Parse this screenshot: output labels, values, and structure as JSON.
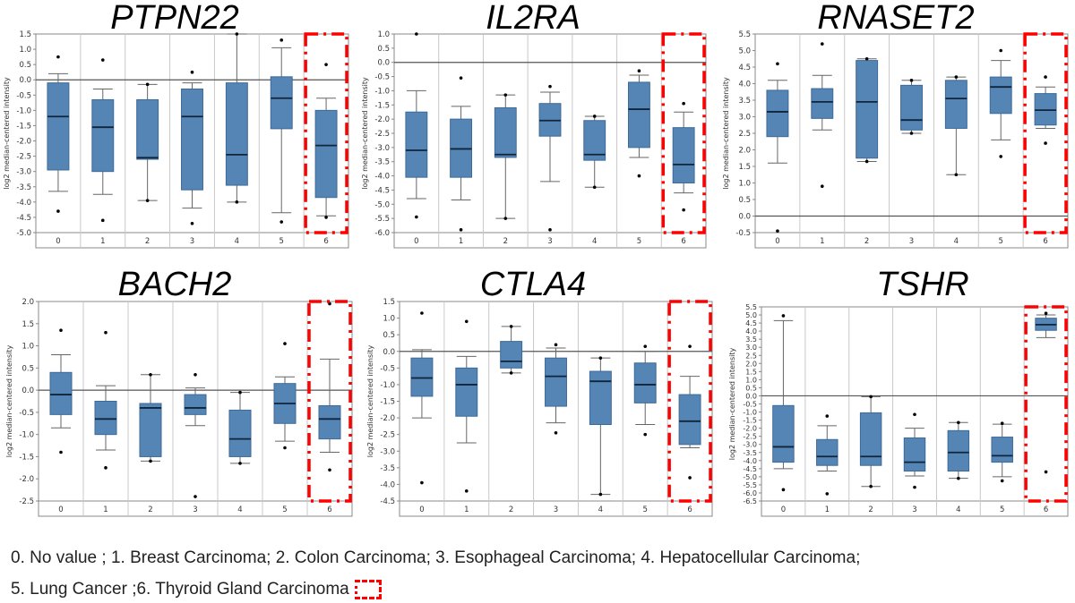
{
  "chart_data": [
    {
      "type": "box",
      "title": "PTPN22",
      "ylabel": "log2 median-centered intensity",
      "ylim": [
        -5.0,
        1.5
      ],
      "ystep": 0.5,
      "categories": [
        "0",
        "1",
        "2",
        "3",
        "4",
        "5",
        "6"
      ],
      "highlight": "6",
      "grid": true,
      "boxes": [
        {
          "whisker_low": -3.65,
          "q1": -2.95,
          "median": -1.2,
          "q3": -0.1,
          "whisker_high": 0.2,
          "outliers": [
            0.75,
            -4.3
          ]
        },
        {
          "whisker_low": -3.75,
          "q1": -3.0,
          "median": -1.55,
          "q3": -0.65,
          "whisker_high": -0.3,
          "outliers": [
            0.65,
            -4.6
          ]
        },
        {
          "whisker_low": -3.95,
          "q1": -2.6,
          "median": -2.55,
          "q3": -0.65,
          "whisker_high": -0.15,
          "outliers": [
            -0.15,
            -3.95
          ]
        },
        {
          "whisker_low": -4.2,
          "q1": -3.6,
          "median": -1.2,
          "q3": -0.3,
          "whisker_high": -0.1,
          "outliers": [
            0.25,
            -4.7
          ]
        },
        {
          "whisker_low": -4.0,
          "q1": -3.45,
          "median": -2.45,
          "q3": -0.1,
          "whisker_high": 1.5,
          "outliers": [
            1.5,
            -4.0
          ]
        },
        {
          "whisker_low": -4.35,
          "q1": -1.6,
          "median": -0.6,
          "q3": 0.1,
          "whisker_high": 1.05,
          "outliers": [
            1.3,
            -4.65
          ]
        },
        {
          "whisker_low": -4.45,
          "q1": -3.85,
          "median": -2.15,
          "q3": -1.0,
          "whisker_high": -0.6,
          "outliers": [
            0.5,
            -4.5
          ]
        }
      ]
    },
    {
      "type": "box",
      "title": "IL2RA",
      "ylabel": "log2 median-centered intensity",
      "ylim": [
        -6.0,
        1.0
      ],
      "ystep": 0.5,
      "categories": [
        "0",
        "1",
        "2",
        "3",
        "4",
        "5",
        "6"
      ],
      "highlight": "6",
      "grid": true,
      "boxes": [
        {
          "whisker_low": -4.8,
          "q1": -4.05,
          "median": -3.1,
          "q3": -1.75,
          "whisker_high": -1.0,
          "outliers": [
            1.0,
            -5.45
          ]
        },
        {
          "whisker_low": -4.85,
          "q1": -4.05,
          "median": -3.05,
          "q3": -2.0,
          "whisker_high": -1.55,
          "outliers": [
            -0.55,
            -5.9
          ]
        },
        {
          "whisker_low": -5.5,
          "q1": -3.35,
          "median": -3.25,
          "q3": -1.6,
          "whisker_high": -1.15,
          "outliers": [
            -1.15,
            -5.5
          ]
        },
        {
          "whisker_low": -4.2,
          "q1": -2.6,
          "median": -2.05,
          "q3": -1.45,
          "whisker_high": -1.05,
          "outliers": [
            -0.85,
            -5.9
          ]
        },
        {
          "whisker_low": -4.4,
          "q1": -3.45,
          "median": -3.25,
          "q3": -2.05,
          "whisker_high": -1.9,
          "outliers": [
            -1.9,
            -4.4
          ]
        },
        {
          "whisker_low": -3.35,
          "q1": -3.0,
          "median": -1.65,
          "q3": -0.7,
          "whisker_high": -0.45,
          "outliers": [
            -0.3,
            -4.0
          ]
        },
        {
          "whisker_low": -4.6,
          "q1": -4.25,
          "median": -3.6,
          "q3": -2.3,
          "whisker_high": -1.75,
          "outliers": [
            -1.45,
            -5.2
          ]
        }
      ]
    },
    {
      "type": "box",
      "title": "RNASET2",
      "ylabel": "log2 median-centered intensity",
      "ylim": [
        -0.5,
        5.5
      ],
      "ystep": 0.5,
      "categories": [
        "0",
        "1",
        "2",
        "3",
        "4",
        "5",
        "6"
      ],
      "highlight": "6",
      "grid": true,
      "boxes": [
        {
          "whisker_low": 1.6,
          "q1": 2.4,
          "median": 3.15,
          "q3": 3.8,
          "whisker_high": 4.1,
          "outliers": [
            4.6,
            -0.45
          ]
        },
        {
          "whisker_low": 2.6,
          "q1": 2.95,
          "median": 3.45,
          "q3": 3.85,
          "whisker_high": 4.25,
          "outliers": [
            5.2,
            0.9
          ]
        },
        {
          "whisker_low": 1.65,
          "q1": 1.75,
          "median": 3.45,
          "q3": 4.7,
          "whisker_high": 4.75,
          "outliers": [
            4.75,
            1.65
          ]
        },
        {
          "whisker_low": 2.5,
          "q1": 2.6,
          "median": 2.9,
          "q3": 3.95,
          "whisker_high": 4.1,
          "outliers": [
            4.1,
            2.5
          ]
        },
        {
          "whisker_low": 1.25,
          "q1": 2.65,
          "median": 3.55,
          "q3": 4.1,
          "whisker_high": 4.2,
          "outliers": [
            4.2,
            1.25
          ]
        },
        {
          "whisker_low": 2.3,
          "q1": 3.1,
          "median": 3.9,
          "q3": 4.2,
          "whisker_high": 4.7,
          "outliers": [
            5.0,
            1.8
          ]
        },
        {
          "whisker_low": 2.65,
          "q1": 2.75,
          "median": 3.2,
          "q3": 3.7,
          "whisker_high": 3.9,
          "outliers": [
            4.2,
            2.2
          ]
        }
      ]
    },
    {
      "type": "box",
      "title": "BACH2",
      "ylabel": "log2 median-centered intensity",
      "ylim": [
        -2.5,
        2.0
      ],
      "ystep": 0.5,
      "categories": [
        "0",
        "1",
        "2",
        "3",
        "4",
        "5",
        "6"
      ],
      "highlight": "6",
      "grid": true,
      "boxes": [
        {
          "whisker_low": -0.85,
          "q1": -0.55,
          "median": -0.1,
          "q3": 0.4,
          "whisker_high": 0.8,
          "outliers": [
            1.35,
            -1.4
          ]
        },
        {
          "whisker_low": -1.35,
          "q1": -1.0,
          "median": -0.65,
          "q3": -0.25,
          "whisker_high": 0.1,
          "outliers": [
            1.3,
            -1.75
          ]
        },
        {
          "whisker_low": -1.6,
          "q1": -1.5,
          "median": -0.4,
          "q3": -0.3,
          "whisker_high": 0.35,
          "outliers": [
            0.35,
            -1.6
          ]
        },
        {
          "whisker_low": -0.8,
          "q1": -0.55,
          "median": -0.4,
          "q3": -0.1,
          "whisker_high": 0.05,
          "outliers": [
            0.35,
            -2.4
          ]
        },
        {
          "whisker_low": -1.65,
          "q1": -1.5,
          "median": -1.1,
          "q3": -0.45,
          "whisker_high": -0.05,
          "outliers": [
            -0.05,
            -1.65
          ]
        },
        {
          "whisker_low": -1.15,
          "q1": -0.75,
          "median": -0.3,
          "q3": 0.15,
          "whisker_high": 0.3,
          "outliers": [
            1.05,
            -1.3
          ]
        },
        {
          "whisker_low": -1.4,
          "q1": -1.1,
          "median": -0.65,
          "q3": -0.35,
          "whisker_high": 0.7,
          "outliers": [
            1.95,
            -1.8
          ]
        }
      ]
    },
    {
      "type": "box",
      "title": "CTLA4",
      "ylabel": "log2 median-centered intensity",
      "ylim": [
        -4.5,
        1.5
      ],
      "ystep": 0.5,
      "categories": [
        "0",
        "1",
        "2",
        "3",
        "4",
        "5",
        "6"
      ],
      "highlight": "6",
      "grid": true,
      "boxes": [
        {
          "whisker_low": -2.0,
          "q1": -1.35,
          "median": -0.8,
          "q3": -0.2,
          "whisker_high": 0.05,
          "outliers": [
            1.15,
            -3.95
          ]
        },
        {
          "whisker_low": -2.75,
          "q1": -1.95,
          "median": -1.0,
          "q3": -0.5,
          "whisker_high": -0.15,
          "outliers": [
            0.9,
            -4.2
          ]
        },
        {
          "whisker_low": -0.65,
          "q1": -0.5,
          "median": -0.3,
          "q3": 0.3,
          "whisker_high": 0.75,
          "outliers": [
            0.75,
            -0.65
          ]
        },
        {
          "whisker_low": -2.15,
          "q1": -1.65,
          "median": -0.75,
          "q3": -0.2,
          "whisker_high": 0.1,
          "outliers": [
            0.2,
            -2.45
          ]
        },
        {
          "whisker_low": -4.3,
          "q1": -2.2,
          "median": -0.9,
          "q3": -0.6,
          "whisker_high": -0.2,
          "outliers": [
            -0.2,
            -4.3
          ]
        },
        {
          "whisker_low": -2.2,
          "q1": -1.55,
          "median": -1.0,
          "q3": -0.35,
          "whisker_high": 0.0,
          "outliers": [
            0.15,
            -2.5
          ]
        },
        {
          "whisker_low": -2.9,
          "q1": -2.8,
          "median": -2.1,
          "q3": -1.3,
          "whisker_high": -0.75,
          "outliers": [
            0.15,
            -3.8
          ]
        }
      ]
    },
    {
      "type": "box",
      "title": "TSHR",
      "ylabel": "log2 median-centered intensity",
      "ylim": [
        -6.5,
        5.5
      ],
      "ystep": 0.5,
      "categories": [
        "0",
        "1",
        "2",
        "3",
        "4",
        "5",
        "6"
      ],
      "highlight": "6",
      "grid": true,
      "boxes": [
        {
          "whisker_low": -4.5,
          "q1": -4.1,
          "median": -3.15,
          "q3": -0.6,
          "whisker_high": 4.65,
          "outliers": [
            4.95,
            -5.8
          ]
        },
        {
          "whisker_low": -4.65,
          "q1": -4.3,
          "median": -3.75,
          "q3": -2.7,
          "whisker_high": -1.85,
          "outliers": [
            -1.25,
            -6.05
          ]
        },
        {
          "whisker_low": -5.6,
          "q1": -4.3,
          "median": -3.75,
          "q3": -1.05,
          "whisker_high": -0.05,
          "outliers": [
            -0.05,
            -5.6
          ]
        },
        {
          "whisker_low": -4.95,
          "q1": -4.65,
          "median": -4.1,
          "q3": -2.6,
          "whisker_high": -2.0,
          "outliers": [
            -1.15,
            -5.65
          ]
        },
        {
          "whisker_low": -5.1,
          "q1": -4.65,
          "median": -3.5,
          "q3": -2.15,
          "whisker_high": -1.65,
          "outliers": [
            -1.65,
            -5.1
          ]
        },
        {
          "whisker_low": -5.0,
          "q1": -4.1,
          "median": -3.7,
          "q3": -2.55,
          "whisker_high": -1.75,
          "outliers": [
            -1.7,
            -5.25
          ]
        },
        {
          "whisker_low": 3.6,
          "q1": 4.05,
          "median": 4.4,
          "q3": 4.8,
          "whisker_high": 5.0,
          "outliers": [
            5.1,
            -4.7
          ]
        }
      ]
    }
  ],
  "colors": {
    "box_fill": "#5585b5",
    "box_stroke": "#3d6a98",
    "highlight": "#ff0000",
    "grid": "#c8c8c8",
    "zero_line": "#555555"
  },
  "legend": {
    "line1": "0. No value ; 1. Breast Carcinoma; 2. Colon Carcinoma; 3. Esophageal Carcinoma; 4. Hepatocellular Carcinoma;",
    "line2": "5. Lung Cancer ;6. Thyroid Gland Carcinoma"
  }
}
